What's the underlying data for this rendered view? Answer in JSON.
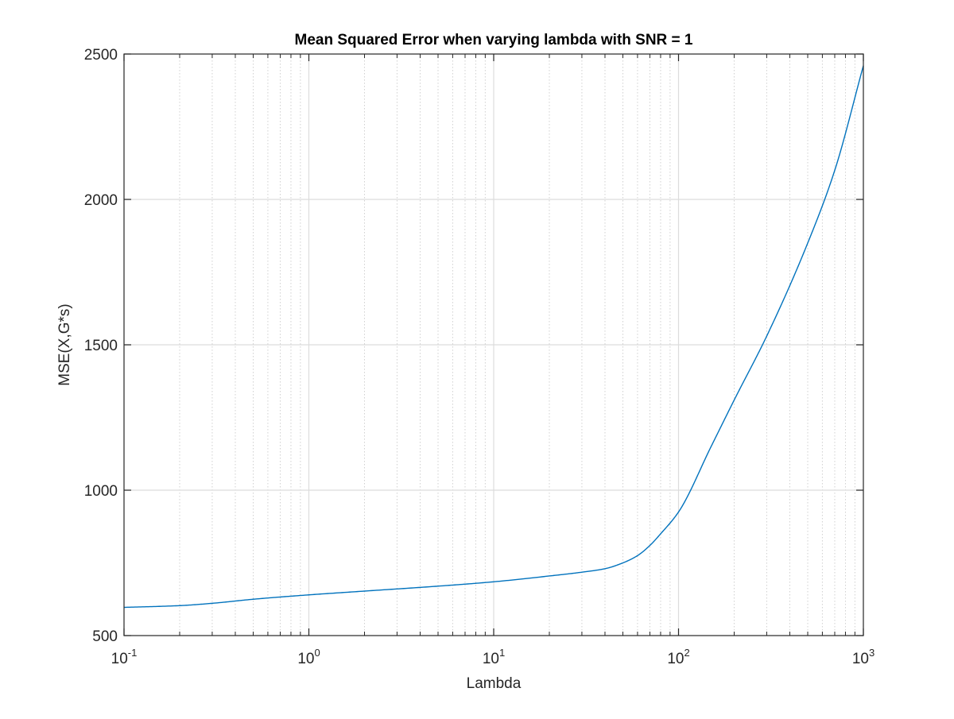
{
  "chart_data": {
    "type": "line",
    "title": "Mean Squared Error when varying lambda with SNR = 1",
    "xlabel": "Lambda",
    "ylabel": "MSE(X,G*s)",
    "xscale": "log",
    "xlim": [
      0.1,
      1000
    ],
    "ylim": [
      500,
      2500
    ],
    "x_ticks": [
      {
        "base": "10",
        "exp": "-1",
        "value": 0.1
      },
      {
        "base": "10",
        "exp": "0",
        "value": 1
      },
      {
        "base": "10",
        "exp": "1",
        "value": 10
      },
      {
        "base": "10",
        "exp": "2",
        "value": 100
      },
      {
        "base": "10",
        "exp": "3",
        "value": 1000
      }
    ],
    "y_ticks": [
      {
        "label": "500",
        "value": 500
      },
      {
        "label": "1000",
        "value": 1000
      },
      {
        "label": "1500",
        "value": 1500
      },
      {
        "label": "2000",
        "value": 2000
      },
      {
        "label": "2500",
        "value": 2500
      }
    ],
    "grid": true,
    "minor_grid_x": true,
    "legend": "none",
    "line_color": "#0072BD",
    "series": [
      {
        "x": [
          0.1,
          0.2,
          0.3,
          0.5,
          1,
          2,
          5,
          10,
          20,
          30,
          40,
          50,
          60,
          70,
          80,
          100,
          150,
          200,
          300,
          500,
          700,
          1000
        ],
        "y": [
          597,
          603,
          611,
          625,
          640,
          653,
          670,
          685,
          705,
          718,
          730,
          750,
          775,
          810,
          850,
          925,
          1150,
          1310,
          1530,
          1850,
          2100,
          2460
        ]
      }
    ]
  }
}
